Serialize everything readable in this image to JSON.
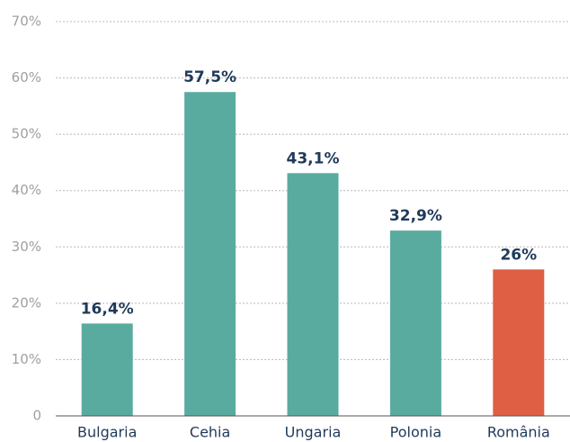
{
  "chart_data": {
    "type": "bar",
    "categories": [
      "Bulgaria",
      "Cehia",
      "Ungaria",
      "Polonia",
      "România"
    ],
    "values": [
      16.4,
      57.5,
      43.1,
      32.9,
      26
    ],
    "value_labels": [
      "16,4%",
      "57,5%",
      "43,1%",
      "32,9%",
      "26%"
    ],
    "colors": [
      "#5aab9f",
      "#5aab9f",
      "#5aab9f",
      "#5aab9f",
      "#df5f45"
    ],
    "ylim": [
      0,
      70
    ],
    "yticks": [
      0,
      {
        "value": 10,
        "label": "10%"
      },
      {
        "value": 20,
        "label": "20%"
      },
      {
        "value": 30,
        "label": "30%"
      },
      {
        "value": 40,
        "label": "40%"
      },
      {
        "value": 50,
        "label": "50%"
      },
      {
        "value": 60,
        "label": "60%"
      },
      {
        "value": 70,
        "label": "70%"
      }
    ],
    "grid": true
  }
}
